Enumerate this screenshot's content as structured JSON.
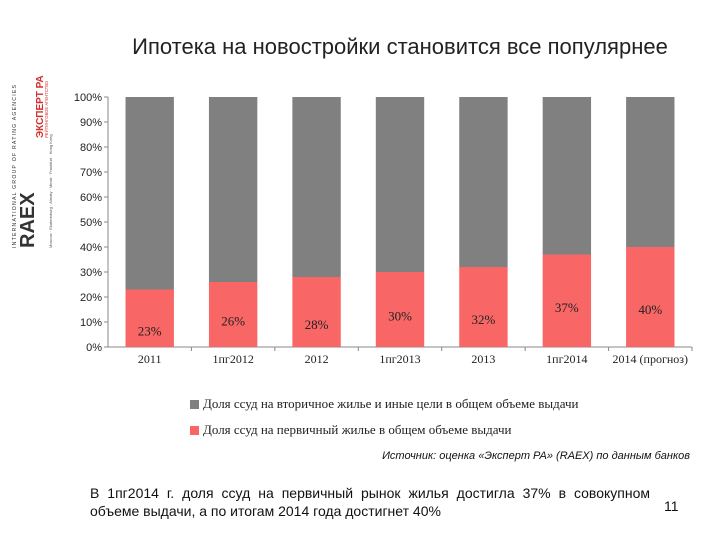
{
  "slide": {
    "title": "Ипотека на новостройки становится все популярнее",
    "source": "Источник: оценка «Эксперт РА» (RAEX) по данным банков",
    "footer_text": "В 1пг2014 г. доля ссуд на первичный рынок жилья достигла 37% в совокупном объеме выдачи, а по итогам 2014 года достигнет 40%",
    "page_number": "11"
  },
  "logo": {
    "text_main": "RAEX",
    "text_expert": "ЭКСПЕРТ РА",
    "text_group": "INTERNATIONAL GROUP OF RATING AGENCIES",
    "text_sub": "РЕЙТИНГОВОЕ АГЕНТСТВО",
    "text_cities": "Moscow · Ekaterinburg · Almaty · Minsk · Frankfurt · Hong Kong",
    "colors": {
      "red": "#d32f2f",
      "dark": "#333333"
    }
  },
  "chart_data": {
    "type": "bar",
    "stacked": true,
    "categories": [
      "2011",
      "1пг2012",
      "2012",
      "1пг2013",
      "2013",
      "1пг2014",
      "2014 (прогноз)"
    ],
    "series": [
      {
        "name": "Доля ссуд на первичный  жилье  в общем объеме выдачи",
        "values": [
          23,
          26,
          28,
          30,
          32,
          37,
          40
        ],
        "color": "#f86666"
      },
      {
        "name": "Доля ссуд на вторичное жилье и иные цели в общем объеме выдачи",
        "values": [
          77,
          74,
          72,
          70,
          68,
          63,
          60
        ],
        "color": "#808080"
      }
    ],
    "data_labels": [
      "23%",
      "26%",
      "28%",
      "30%",
      "32%",
      "37%",
      "40%"
    ],
    "yticks": [
      "0%",
      "10%",
      "20%",
      "30%",
      "40%",
      "50%",
      "60%",
      "70%",
      "80%",
      "90%",
      "100%"
    ],
    "ylim": [
      0,
      100
    ],
    "legend_position": "bottom",
    "grid": false
  }
}
